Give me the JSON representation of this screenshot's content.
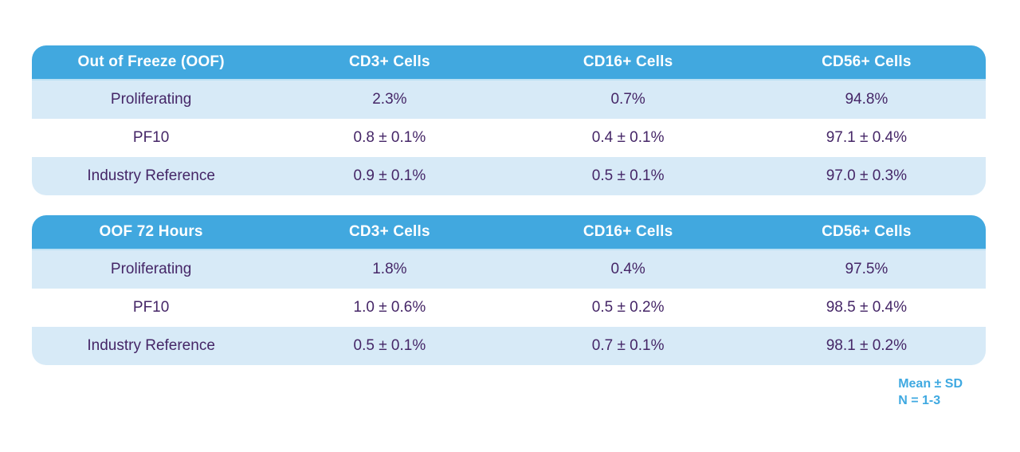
{
  "colors": {
    "header_bg": "#41a8df",
    "row_alt_bg": "#d7eaf7",
    "row_bg": "#ffffff",
    "header_text": "#ffffff",
    "cell_text": "#452667",
    "footnote_text": "#3fa9e1"
  },
  "chart_data": [
    {
      "type": "table",
      "title": "Out of Freeze (OOF)",
      "columns": [
        "Out of Freeze (OOF)",
        "CD3+ Cells",
        "CD16+ Cells",
        "CD56+ Cells"
      ],
      "rows": [
        [
          "Proliferating",
          "2.3%",
          "0.7%",
          "94.8%"
        ],
        [
          "PF10",
          "0.8 ± 0.1%",
          "0.4 ± 0.1%",
          "97.1 ± 0.4%"
        ],
        [
          "Industry Reference",
          "0.9 ± 0.1%",
          "0.5 ± 0.1%",
          "97.0 ± 0.3%"
        ]
      ]
    },
    {
      "type": "table",
      "title": "OOF 72 Hours",
      "columns": [
        "OOF 72 Hours",
        "CD3+ Cells",
        "CD16+ Cells",
        "CD56+ Cells"
      ],
      "rows": [
        [
          "Proliferating",
          "1.8%",
          "0.4%",
          "97.5%"
        ],
        [
          "PF10",
          "1.0 ± 0.6%",
          "0.5 ± 0.2%",
          "98.5 ± 0.4%"
        ],
        [
          "Industry Reference",
          "0.5 ± 0.1%",
          "0.7 ± 0.1%",
          "98.1 ± 0.2%"
        ]
      ]
    }
  ],
  "footnote": {
    "line1": "Mean ± SD",
    "line2": "N = 1-3"
  }
}
